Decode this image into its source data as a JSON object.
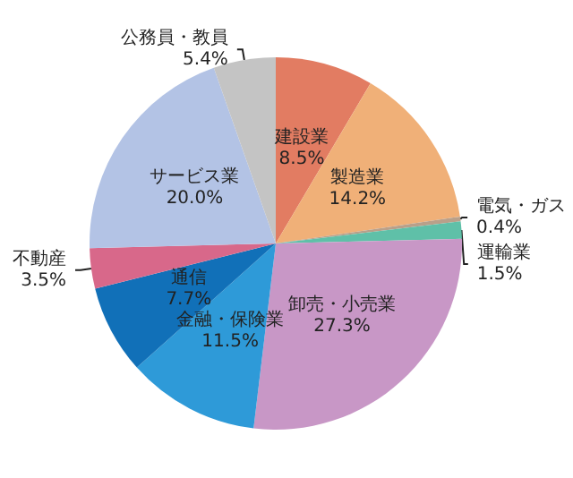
{
  "chart_data": {
    "type": "pie",
    "categories": [
      "建設業",
      "製造業",
      "電気・ガス",
      "運輸業",
      "卸売・小売業",
      "金融・保険業",
      "通信",
      "不動産",
      "サービス業",
      "公務員・教員"
    ],
    "values": [
      8.5,
      14.2,
      0.4,
      1.5,
      27.3,
      11.5,
      7.7,
      3.5,
      20.0,
      5.4
    ],
    "colors": [
      "#e27c62",
      "#f0b078",
      "#b9a08a",
      "#5fc0a8",
      "#c897c6",
      "#2e9ad8",
      "#1170b8",
      "#d8688a",
      "#b3c3e5",
      "#c4c4c4"
    ],
    "value_labels": [
      "8.5%",
      "14.2%",
      "0.4%",
      "1.5%",
      "27.3%",
      "11.5%",
      "7.7%",
      "3.5%",
      "20.0%",
      "5.4%"
    ],
    "legend": false
  }
}
